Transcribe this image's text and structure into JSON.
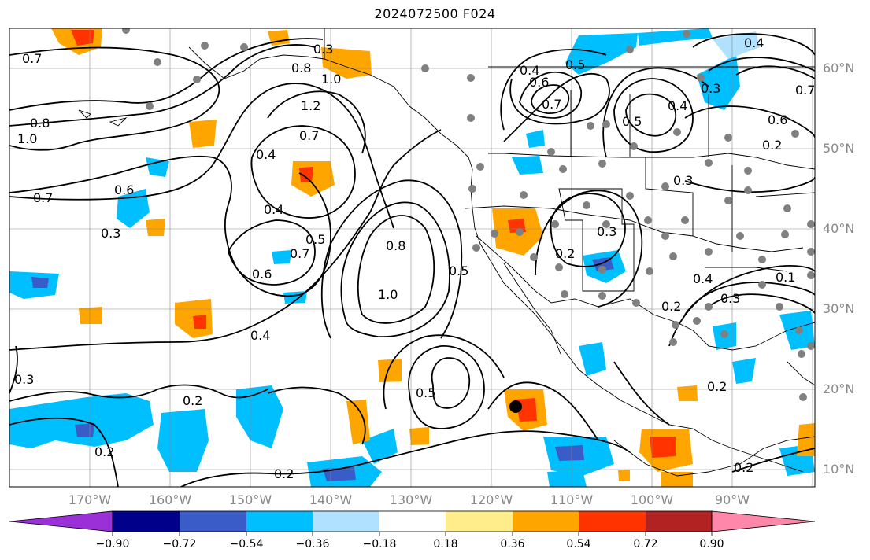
{
  "title": "2024072500 F024",
  "latitude_labels": [
    "60°N",
    "50°N",
    "40°N",
    "30°N",
    "20°N",
    "10°N"
  ],
  "longitude_labels": [
    "170°W",
    "160°W",
    "150°W",
    "140°W",
    "130°W",
    "120°W",
    "110°W",
    "100°W",
    "90°W"
  ],
  "colorbar": {
    "tick_labels": [
      "−0.90",
      "−0.72",
      "−0.54",
      "−0.36",
      "−0.18",
      "0.18",
      "0.36",
      "0.54",
      "0.72",
      "0.90"
    ],
    "colors": [
      "#9b30d9",
      "#00008b",
      "#3a5cc8",
      "#00bfff",
      "#b0e2ff",
      "#ffffff",
      "#ffec8b",
      "#ffa500",
      "#ff3300",
      "#b22222",
      "#ff88aa"
    ]
  },
  "contour_labels": [
    "0.7",
    "0.8",
    "1.0",
    "0.6",
    "0.3",
    "0.7",
    "0.3",
    "0.8",
    "1.0",
    "1.2",
    "0.7",
    "0.4",
    "0.4",
    "0.5",
    "0.7",
    "0.6",
    "0.4",
    "0.8",
    "1.0",
    "0.5",
    "0.5",
    "0.2",
    "0.3",
    "0.2",
    "0.2",
    "0.4",
    "0.6",
    "0.7",
    "0.5",
    "0.4",
    "0.3",
    "0.2",
    "0.4",
    "0.5",
    "0.3",
    "0.7",
    "0.6",
    "0.2",
    "0.4",
    "0.2",
    "0.2",
    "0.2",
    "0.3",
    "0.1",
    "0.3"
  ],
  "colors": {
    "grid": "#888888",
    "contour": "#000000",
    "station_dot": "#808080"
  }
}
